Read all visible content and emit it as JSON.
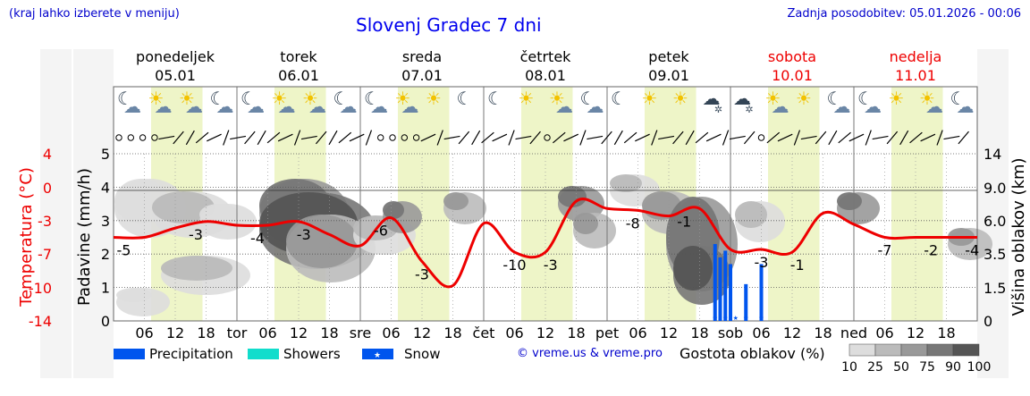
{
  "header": {
    "note": "(kraj lahko izberete v meniju)",
    "title": "Slovenj Gradec 7 dni",
    "updated": "Zadnja posodobitev: 05.01.2026 - 00:06"
  },
  "copyright": "© vreme.us & vreme.pro",
  "colors": {
    "temperature": "#ee0000",
    "precipitation": "#0055ee",
    "showers": "#11ddcc",
    "daylight": "#eef5c8",
    "weekend": "#ee0000",
    "text_blue": "#0000cc"
  },
  "icons": [
    "moon-cloud-icon",
    "sun-cloud-icon",
    "sun-cloud-icon",
    "moon-cloud-icon",
    "moon-cloud-icon",
    "sun-cloud-icon",
    "sun-cloud-icon",
    "moon-cloud-icon",
    "moon-cloud-icon",
    "sun-cloud-icon",
    "sun-icon",
    "moon-icon",
    "moon-icon",
    "sun-icon",
    "sun-cloud-icon",
    "moon-cloud-icon",
    "moon-icon",
    "sun-icon",
    "sun-icon",
    "snow-cloud-icon",
    "snow-cloud-icon",
    "sun-cloud-icon",
    "sun-icon",
    "moon-cloud-icon",
    "moon-cloud-icon",
    "sun-icon",
    "sun-cloud-icon",
    "moon-cloud-icon"
  ],
  "chart_data": {
    "type": "line",
    "title": "Slovenj Gradec 7 dni",
    "days": [
      {
        "name": "ponedeljek",
        "date": "05.01",
        "weekend": false
      },
      {
        "name": "torek",
        "date": "06.01",
        "weekend": false
      },
      {
        "name": "sreda",
        "date": "07.01",
        "weekend": false
      },
      {
        "name": "četrtek",
        "date": "08.01",
        "weekend": false
      },
      {
        "name": "petek",
        "date": "09.01",
        "weekend": false
      },
      {
        "name": "sobota",
        "date": "10.01",
        "weekend": true
      },
      {
        "name": "nedelja",
        "date": "11.01",
        "weekend": true
      }
    ],
    "x_ticks": [
      "06",
      "12",
      "18",
      "tor",
      "06",
      "12",
      "18",
      "sre",
      "06",
      "12",
      "18",
      "čet",
      "06",
      "12",
      "18",
      "pet",
      "06",
      "12",
      "18",
      "sob",
      "06",
      "12",
      "18",
      "ned",
      "06",
      "12",
      "18"
    ],
    "hours_range": [
      0,
      168
    ],
    "axes": {
      "temperature": {
        "label": "Temperatura (°C)",
        "ticks": [
          "4",
          "0",
          "-3",
          "-7",
          "-10",
          "-14"
        ],
        "range": [
          -14,
          4
        ]
      },
      "precipitation": {
        "label": "Padavine (mm/h)",
        "ticks": [
          "0",
          "1",
          "2",
          "3",
          "4",
          "5"
        ],
        "range": [
          0,
          5
        ]
      },
      "cloud_height": {
        "label": "Višina oblakov (km)",
        "ticks": [
          "0",
          "1.5",
          "3.5",
          "6.0",
          "9.0",
          "14"
        ]
      }
    },
    "temperature_series": {
      "name": "Temperatura",
      "hours": [
        0,
        6,
        12,
        18,
        24,
        30,
        36,
        42,
        48,
        54,
        60,
        66,
        72,
        78,
        84,
        90,
        96,
        102,
        108,
        114,
        120,
        126,
        132,
        138,
        144,
        150,
        156,
        162,
        168
      ],
      "values": [
        -5,
        -5,
        -4,
        -3.3,
        -3.7,
        -3.7,
        -3.3,
        -4.7,
        -5.9,
        -2.9,
        -7.6,
        -10.2,
        -3.5,
        -6.6,
        -6.6,
        -1.1,
        -1.9,
        -2.1,
        -2.7,
        -1.9,
        -6.3,
        -6.3,
        -6.6,
        -2.4,
        -3.6,
        -5,
        -5,
        -5,
        -5
      ],
      "labels": [
        {
          "hour": 2,
          "text": "-5"
        },
        {
          "hour": 16,
          "text": "-3"
        },
        {
          "hour": 28,
          "text": "-4"
        },
        {
          "hour": 37,
          "text": "-3"
        },
        {
          "hour": 52,
          "text": "-6"
        },
        {
          "hour": 60,
          "text": "-3"
        },
        {
          "hour": 78,
          "text": "-10"
        },
        {
          "hour": 85,
          "text": "-3"
        },
        {
          "hour": 101,
          "text": "-8"
        },
        {
          "hour": 111,
          "text": "-1"
        },
        {
          "hour": 126,
          "text": "-3"
        },
        {
          "hour": 133,
          "text": "-1"
        },
        {
          "hour": 150,
          "text": "-7"
        },
        {
          "hour": 159,
          "text": "-2"
        },
        {
          "hour": 167,
          "text": "-4"
        }
      ]
    },
    "precipitation_series": {
      "name": "Precipitation",
      "hours": [
        117,
        118,
        119,
        120,
        123,
        126
      ],
      "values": [
        2.3,
        1.9,
        2.1,
        1.7,
        1.1,
        1.7
      ]
    },
    "legend": [
      {
        "label": "Precipitation",
        "color": "#0055ee"
      },
      {
        "label": "Showers",
        "color": "#11ddcc"
      },
      {
        "label": "Snow",
        "color": "#0055ee"
      }
    ],
    "cloud_density": {
      "label": "Gostota oblakov (%)",
      "levels": [
        "10",
        "25",
        "50",
        "75",
        "90",
        "100"
      ],
      "colors": [
        "#dddddd",
        "#bbbbbb",
        "#999999",
        "#777777",
        "#555555"
      ]
    }
  }
}
